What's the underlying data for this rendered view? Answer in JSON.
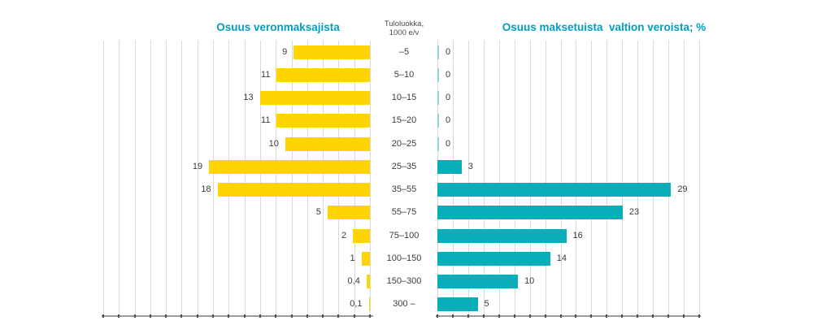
{
  "colors": {
    "title_teal": "#009FBE",
    "taxpayers_yellow": "#FFD400",
    "taxes_teal": "#0AAEB9",
    "zero_sliver_teal": "#8FD6DC",
    "text_gray": "#3c3c3c"
  },
  "center_header": {
    "line1": "Tuloluokka,",
    "line2": "1000 e/v"
  },
  "chart_data": {
    "type": "bar",
    "orientation": "horizontal",
    "grid": true,
    "gridline_count": 18,
    "categories_header": "Tuloluokka, 1000 e/v",
    "categories": [
      "–5",
      "5–10",
      "10–15",
      "15–20",
      "20–25",
      "25–35",
      "35–55",
      "55–75",
      "75–100",
      "100–150",
      "150–300",
      "300 –"
    ],
    "series": [
      {
        "name": "Osuus veronmaksajista",
        "direction": "left",
        "color": "#FFD400",
        "xlim": [
          0,
          31.5
        ],
        "values": [
          9,
          11,
          13,
          11,
          10,
          19,
          18,
          5,
          2,
          1,
          0.4,
          0.1
        ],
        "labels": [
          "9",
          "11",
          "13",
          "11",
          "10",
          "19",
          "18",
          "5",
          "2",
          "1",
          "0,4",
          "0,1"
        ]
      },
      {
        "name": "Osuus maksetuista  valtion veroista; %",
        "direction": "right",
        "color": "#0AAEB9",
        "xlim": [
          0,
          32.5
        ],
        "values": [
          0,
          0,
          0,
          0,
          0,
          3,
          29,
          23,
          16,
          14,
          10,
          5
        ],
        "labels": [
          "0",
          "0",
          "0",
          "0",
          "0",
          "3",
          "29",
          "23",
          "16",
          "14",
          "10",
          "5"
        ]
      }
    ]
  }
}
